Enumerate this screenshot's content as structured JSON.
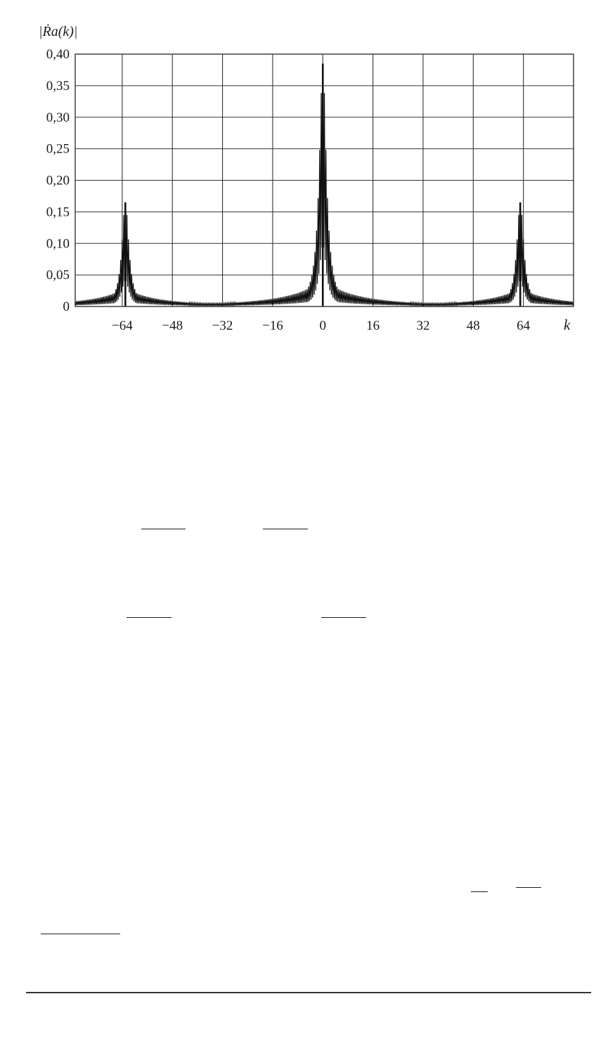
{
  "chart_data": {
    "type": "line",
    "title": "",
    "ylabel": "|Ṙa(k)|",
    "xlabel": "k",
    "x_ticks": [
      -64,
      -48,
      -32,
      -16,
      0,
      16,
      32,
      48,
      64
    ],
    "x_tick_labels": [
      "−64",
      "−48",
      "−32",
      "−16",
      "0",
      "16",
      "32",
      "48",
      "64"
    ],
    "y_ticks": [
      0,
      0.05,
      0.1,
      0.15,
      0.2,
      0.25,
      0.3,
      0.35,
      0.4
    ],
    "y_tick_labels": [
      "0",
      "0,05",
      "0,10",
      "0,15",
      "0,20",
      "0,25",
      "0,30",
      "0,35",
      "0,40"
    ],
    "xlim": [
      -79,
      80
    ],
    "ylim": [
      0,
      0.4
    ],
    "grid": true,
    "series": [
      {
        "peaks": [
          {
            "k": -63,
            "value": 0.165
          },
          {
            "k": 0,
            "value": 0.385
          },
          {
            "k": 63,
            "value": 0.165
          }
        ],
        "baseline": 0.005,
        "oscillating": true
      }
    ]
  },
  "colors": {
    "line": "#111111",
    "grid": "#333333",
    "text": "#1a1a1a"
  }
}
